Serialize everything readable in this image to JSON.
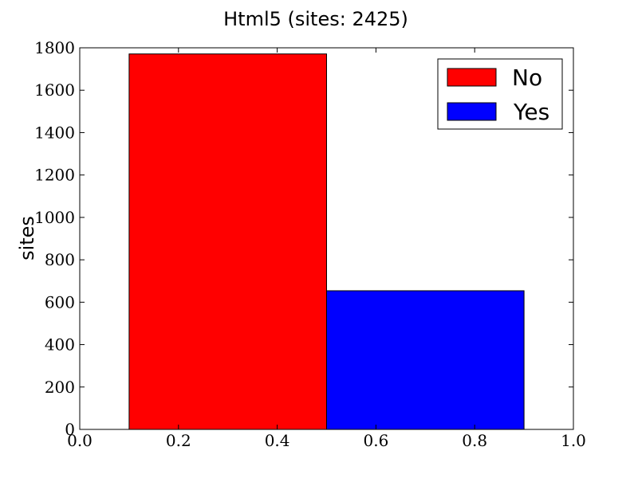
{
  "chart_data": {
    "type": "bar",
    "title": "Html5 (sites: 2425)",
    "xlabel": "",
    "ylabel": "sites",
    "xlim": [
      0.0,
      1.0
    ],
    "ylim": [
      0,
      1800
    ],
    "xticks": [
      "0.0",
      "0.2",
      "0.4",
      "0.6",
      "0.8",
      "1.0"
    ],
    "yticks": [
      "0",
      "200",
      "400",
      "600",
      "800",
      "1000",
      "1200",
      "1400",
      "1600",
      "1800"
    ],
    "bars": [
      {
        "name": "No",
        "x_start": 0.1,
        "x_end": 0.5,
        "value": 1771,
        "color": "#ff0000"
      },
      {
        "name": "Yes",
        "x_start": 0.5,
        "x_end": 0.9,
        "value": 654,
        "color": "#0000ff"
      }
    ],
    "legend": {
      "placement": "top-right",
      "entries": [
        {
          "label": "No",
          "color": "#ff0000"
        },
        {
          "label": "Yes",
          "color": "#0000ff"
        }
      ]
    },
    "grid": false
  }
}
